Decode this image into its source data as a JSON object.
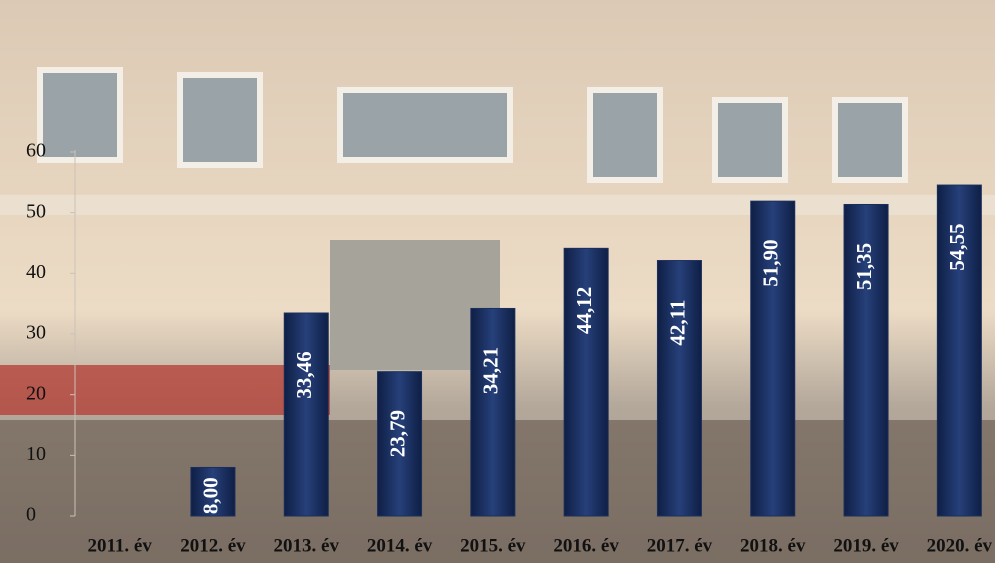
{
  "chart_data": {
    "type": "bar",
    "categories": [
      "2011. év",
      "2012. év",
      "2013. év",
      "2014. év",
      "2015. év",
      "2016. év",
      "2017. év",
      "2018. év",
      "2019. év",
      "2020. év"
    ],
    "values": [
      null,
      8.0,
      33.46,
      23.79,
      34.21,
      44.12,
      42.11,
      51.9,
      51.35,
      54.55
    ],
    "value_labels": [
      null,
      "8,00",
      "33,46",
      "23,79",
      "34,21",
      "44,12",
      "42,11",
      "51,90",
      "51,35",
      "54,55"
    ],
    "color": "#1b2f5e",
    "ylim": [
      0,
      60
    ],
    "yticks": [
      0,
      10,
      20,
      30,
      40,
      50,
      60
    ]
  }
}
